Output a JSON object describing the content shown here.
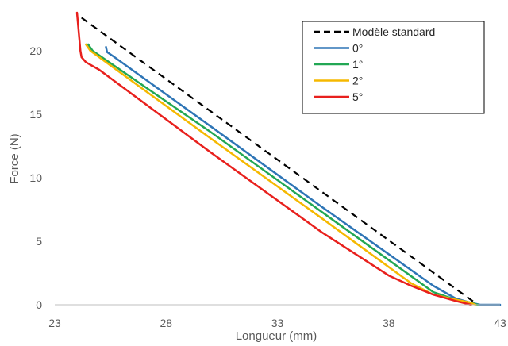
{
  "chart_data": {
    "type": "line",
    "xlabel": "Longueur (mm)",
    "ylabel": "Force (N)",
    "xlim": [
      23,
      43
    ],
    "ylim": [
      0,
      23
    ],
    "xticks": [
      23,
      28,
      33,
      38,
      43
    ],
    "yticks": [
      0,
      5,
      10,
      15,
      20
    ],
    "grid": false,
    "legend_position": "top-right",
    "series": [
      {
        "name": "Modèle standard",
        "color": "#000000",
        "dash": "dashed",
        "points": [
          [
            24.2,
            22.6
          ],
          [
            42.0,
            0.0
          ]
        ]
      },
      {
        "name": "0°",
        "color": "#2E75B6",
        "dash": "solid",
        "points": [
          [
            25.3,
            20.3
          ],
          [
            25.35,
            19.9
          ],
          [
            25.6,
            19.6
          ],
          [
            30.0,
            14.05
          ],
          [
            35.0,
            7.7
          ],
          [
            40.0,
            1.5
          ],
          [
            41.0,
            0.5
          ],
          [
            41.6,
            0.2
          ],
          [
            42.1,
            0.0
          ],
          [
            43.0,
            0.0
          ]
        ]
      },
      {
        "name": "1°",
        "color": "#22A754",
        "dash": "solid",
        "points": [
          [
            24.5,
            20.5
          ],
          [
            24.7,
            20.0
          ],
          [
            30.0,
            13.6
          ],
          [
            35.0,
            7.3
          ],
          [
            40.0,
            1.0
          ],
          [
            41.0,
            0.4
          ],
          [
            41.6,
            0.2
          ],
          [
            42.0,
            0.0
          ]
        ]
      },
      {
        "name": "2°",
        "color": "#F5B800",
        "dash": "solid",
        "points": [
          [
            24.4,
            20.5
          ],
          [
            24.6,
            20.0
          ],
          [
            30.0,
            13.1
          ],
          [
            35.0,
            6.8
          ],
          [
            39.0,
            1.7
          ],
          [
            40.0,
            0.8
          ],
          [
            41.0,
            0.4
          ],
          [
            41.6,
            0.2
          ],
          [
            41.9,
            0.0
          ]
        ]
      },
      {
        "name": "5°",
        "color": "#E8201D",
        "dash": "solid",
        "points": [
          [
            24.0,
            23.0
          ],
          [
            24.15,
            20.0
          ],
          [
            24.2,
            19.5
          ],
          [
            24.4,
            19.1
          ],
          [
            25.0,
            18.5
          ],
          [
            30.0,
            12.0
          ],
          [
            35.0,
            5.7
          ],
          [
            38.0,
            2.3
          ],
          [
            39.0,
            1.5
          ],
          [
            40.0,
            0.8
          ],
          [
            41.0,
            0.3
          ],
          [
            41.7,
            0.0
          ]
        ]
      }
    ]
  }
}
